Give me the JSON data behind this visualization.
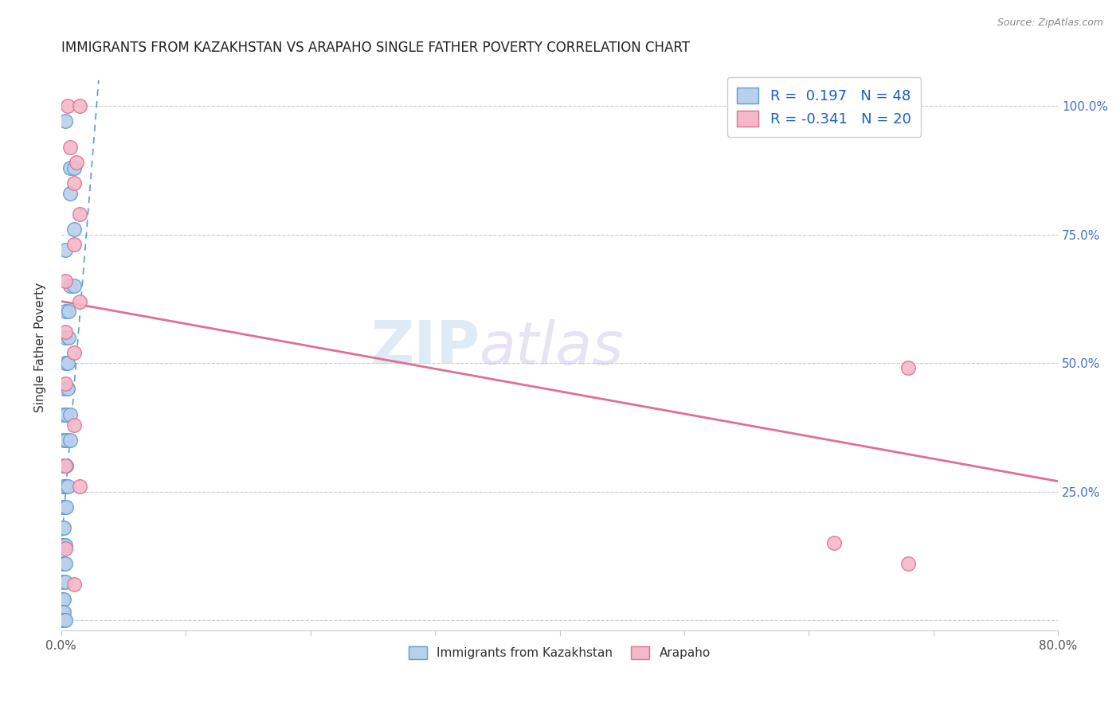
{
  "title": "IMMIGRANTS FROM KAZAKHSTAN VS ARAPAHO SINGLE FATHER POVERTY CORRELATION CHART",
  "source": "Source: ZipAtlas.com",
  "ylabel": "Single Father Poverty",
  "xlim": [
    0.0,
    0.8
  ],
  "ylim": [
    -0.02,
    1.08
  ],
  "blue_R": 0.197,
  "blue_N": 48,
  "pink_R": -0.341,
  "pink_N": 20,
  "blue_color": "#b8d0eb",
  "blue_edge": "#5b9bd5",
  "pink_color": "#f4b8c8",
  "pink_edge": "#e07090",
  "trend_blue_color": "#5b9bd5",
  "trend_pink_color": "#e07090",
  "watermark_zip": "ZIP",
  "watermark_atlas": "atlas",
  "legend_blue_label": "Immigrants from Kazakhstan",
  "legend_pink_label": "Arapaho",
  "blue_dots": [
    [
      0.003,
      0.97
    ],
    [
      0.007,
      0.88
    ],
    [
      0.01,
      0.88
    ],
    [
      0.007,
      0.83
    ],
    [
      0.01,
      0.76
    ],
    [
      0.003,
      0.72
    ],
    [
      0.007,
      0.65
    ],
    [
      0.01,
      0.65
    ],
    [
      0.003,
      0.6
    ],
    [
      0.006,
      0.6
    ],
    [
      0.003,
      0.55
    ],
    [
      0.006,
      0.55
    ],
    [
      0.003,
      0.5
    ],
    [
      0.005,
      0.5
    ],
    [
      0.002,
      0.45
    ],
    [
      0.005,
      0.45
    ],
    [
      0.002,
      0.4
    ],
    [
      0.004,
      0.4
    ],
    [
      0.007,
      0.4
    ],
    [
      0.002,
      0.35
    ],
    [
      0.004,
      0.35
    ],
    [
      0.007,
      0.35
    ],
    [
      0.002,
      0.3
    ],
    [
      0.004,
      0.3
    ],
    [
      0.002,
      0.26
    ],
    [
      0.003,
      0.26
    ],
    [
      0.005,
      0.26
    ],
    [
      0.001,
      0.22
    ],
    [
      0.002,
      0.22
    ],
    [
      0.004,
      0.22
    ],
    [
      0.001,
      0.18
    ],
    [
      0.002,
      0.18
    ],
    [
      0.001,
      0.145
    ],
    [
      0.002,
      0.145
    ],
    [
      0.003,
      0.145
    ],
    [
      0.001,
      0.11
    ],
    [
      0.002,
      0.11
    ],
    [
      0.003,
      0.11
    ],
    [
      0.001,
      0.075
    ],
    [
      0.002,
      0.075
    ],
    [
      0.003,
      0.075
    ],
    [
      0.001,
      0.04
    ],
    [
      0.002,
      0.04
    ],
    [
      0.001,
      0.015
    ],
    [
      0.002,
      0.015
    ],
    [
      0.001,
      0.0
    ],
    [
      0.002,
      0.0
    ],
    [
      0.003,
      0.0
    ]
  ],
  "pink_dots": [
    [
      0.005,
      1.0
    ],
    [
      0.015,
      1.0
    ],
    [
      0.007,
      0.92
    ],
    [
      0.012,
      0.89
    ],
    [
      0.01,
      0.85
    ],
    [
      0.015,
      0.79
    ],
    [
      0.01,
      0.73
    ],
    [
      0.003,
      0.66
    ],
    [
      0.015,
      0.62
    ],
    [
      0.003,
      0.56
    ],
    [
      0.01,
      0.52
    ],
    [
      0.003,
      0.46
    ],
    [
      0.01,
      0.38
    ],
    [
      0.003,
      0.3
    ],
    [
      0.015,
      0.26
    ],
    [
      0.68,
      0.49
    ],
    [
      0.62,
      0.15
    ],
    [
      0.68,
      0.11
    ],
    [
      0.01,
      0.07
    ],
    [
      0.003,
      0.14
    ]
  ],
  "pink_trend_x": [
    0.0,
    0.8
  ],
  "pink_trend_y": [
    0.62,
    0.27
  ],
  "blue_trend_x": [
    0.0,
    0.03
  ],
  "blue_trend_y": [
    0.14,
    1.05
  ],
  "ytick_vals": [
    0.0,
    0.25,
    0.5,
    0.75,
    1.0
  ],
  "ytick_labels": [
    "",
    "25.0%",
    "50.0%",
    "75.0%",
    "100.0%"
  ],
  "xtick_vals": [
    0.0,
    0.1,
    0.2,
    0.3,
    0.4,
    0.5,
    0.6,
    0.7,
    0.8
  ],
  "xtick_labels": [
    "0.0%",
    "",
    "",
    "",
    "",
    "",
    "",
    "",
    "80.0%"
  ],
  "grid_color": "#cccccc",
  "grid_style": "--"
}
